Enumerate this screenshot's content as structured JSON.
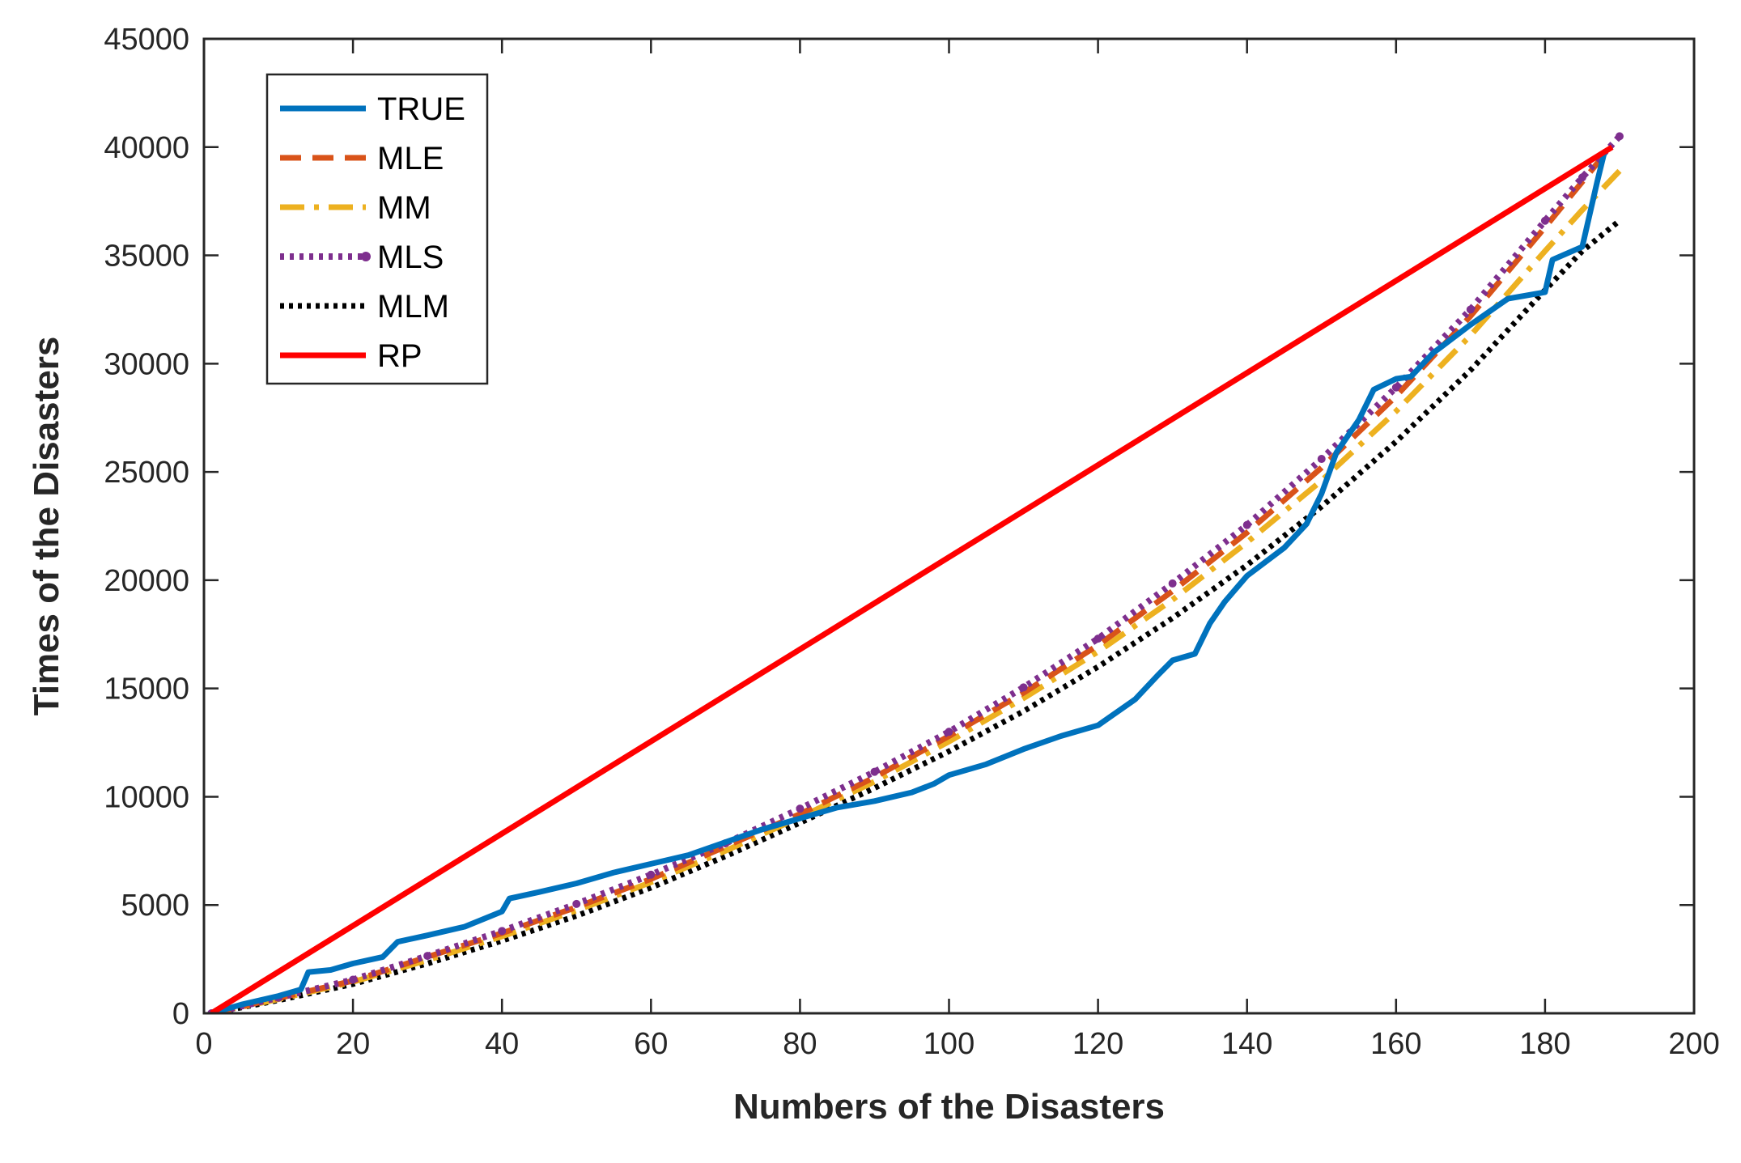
{
  "chart_data": {
    "type": "line",
    "xlabel": "Numbers of the Disasters",
    "ylabel": "Times of the Disasters",
    "xlim": [
      0,
      200
    ],
    "ylim": [
      0,
      45000
    ],
    "xticks": [
      0,
      20,
      40,
      60,
      80,
      100,
      120,
      140,
      160,
      180,
      200
    ],
    "yticks": [
      0,
      5000,
      10000,
      15000,
      20000,
      25000,
      30000,
      35000,
      40000,
      45000
    ],
    "grid": false,
    "legend_position": "top-left",
    "series": [
      {
        "name": "TRUE",
        "color": "#0072BD",
        "style": "solid",
        "x": [
          1,
          5,
          10,
          13,
          14,
          17,
          20,
          24,
          26,
          30,
          35,
          40,
          41,
          45,
          50,
          55,
          60,
          65,
          70,
          75,
          80,
          85,
          90,
          95,
          98,
          100,
          105,
          110,
          115,
          120,
          125,
          128,
          130,
          133,
          135,
          137,
          140,
          145,
          148,
          150,
          152,
          155,
          157,
          160,
          162,
          165,
          170,
          175,
          180,
          181,
          185,
          187,
          188
        ],
        "values": [
          0,
          400,
          800,
          1100,
          1900,
          2000,
          2300,
          2600,
          3300,
          3600,
          4000,
          4700,
          5300,
          5600,
          6000,
          6500,
          6900,
          7300,
          7900,
          8500,
          9000,
          9500,
          9800,
          10200,
          10600,
          11000,
          11500,
          12200,
          12800,
          13300,
          14500,
          15600,
          16300,
          16600,
          18000,
          19000,
          20200,
          21500,
          22600,
          24000,
          25900,
          27400,
          28800,
          29300,
          29400,
          30500,
          31800,
          33000,
          33300,
          34800,
          35400,
          38400,
          39800
        ]
      },
      {
        "name": "MLE",
        "color": "#D95319",
        "style": "dashed",
        "x": [
          1,
          10,
          20,
          30,
          40,
          50,
          60,
          70,
          80,
          90,
          100,
          110,
          120,
          130,
          140,
          150,
          160,
          170,
          180,
          185,
          189
        ],
        "values": [
          0,
          700,
          1500,
          2600,
          3700,
          4900,
          6200,
          7700,
          9200,
          10900,
          12800,
          14800,
          17000,
          19500,
          22200,
          25200,
          28500,
          32200,
          36300,
          38400,
          40100
        ]
      },
      {
        "name": "MM",
        "color": "#EDB120",
        "style": "dashdot",
        "x": [
          1,
          10,
          20,
          30,
          40,
          50,
          60,
          70,
          80,
          90,
          100,
          110,
          120,
          130,
          140,
          150,
          160,
          170,
          180,
          185,
          190
        ],
        "values": [
          0,
          650,
          1450,
          2450,
          3550,
          4750,
          6050,
          7500,
          9050,
          10700,
          12550,
          14550,
          16700,
          19100,
          21750,
          24600,
          27800,
          31300,
          35200,
          37100,
          38900
        ]
      },
      {
        "name": "MLS",
        "color": "#7E2F8E",
        "style": "dotted-marker",
        "x": [
          1,
          10,
          20,
          30,
          40,
          50,
          60,
          70,
          80,
          90,
          100,
          110,
          120,
          130,
          140,
          150,
          160,
          170,
          180,
          185,
          190
        ],
        "values": [
          0,
          720,
          1550,
          2650,
          3800,
          5050,
          6400,
          7850,
          9450,
          11150,
          13000,
          15050,
          17300,
          19850,
          22550,
          25600,
          28900,
          32500,
          36600,
          38600,
          40500
        ]
      },
      {
        "name": "MLM",
        "color": "#000000",
        "style": "dotted",
        "x": [
          1,
          10,
          20,
          30,
          40,
          50,
          60,
          70,
          80,
          90,
          100,
          110,
          120,
          130,
          140,
          150,
          160,
          170,
          180,
          185,
          190
        ],
        "values": [
          0,
          600,
          1350,
          2300,
          3350,
          4500,
          5800,
          7250,
          8800,
          10400,
          12100,
          13950,
          16000,
          18250,
          20700,
          23400,
          26400,
          29700,
          33400,
          35200,
          36600
        ]
      },
      {
        "name": "RP",
        "color": "#FF0000",
        "style": "solid",
        "x": [
          1,
          189
        ],
        "values": [
          0,
          40000
        ]
      }
    ]
  }
}
